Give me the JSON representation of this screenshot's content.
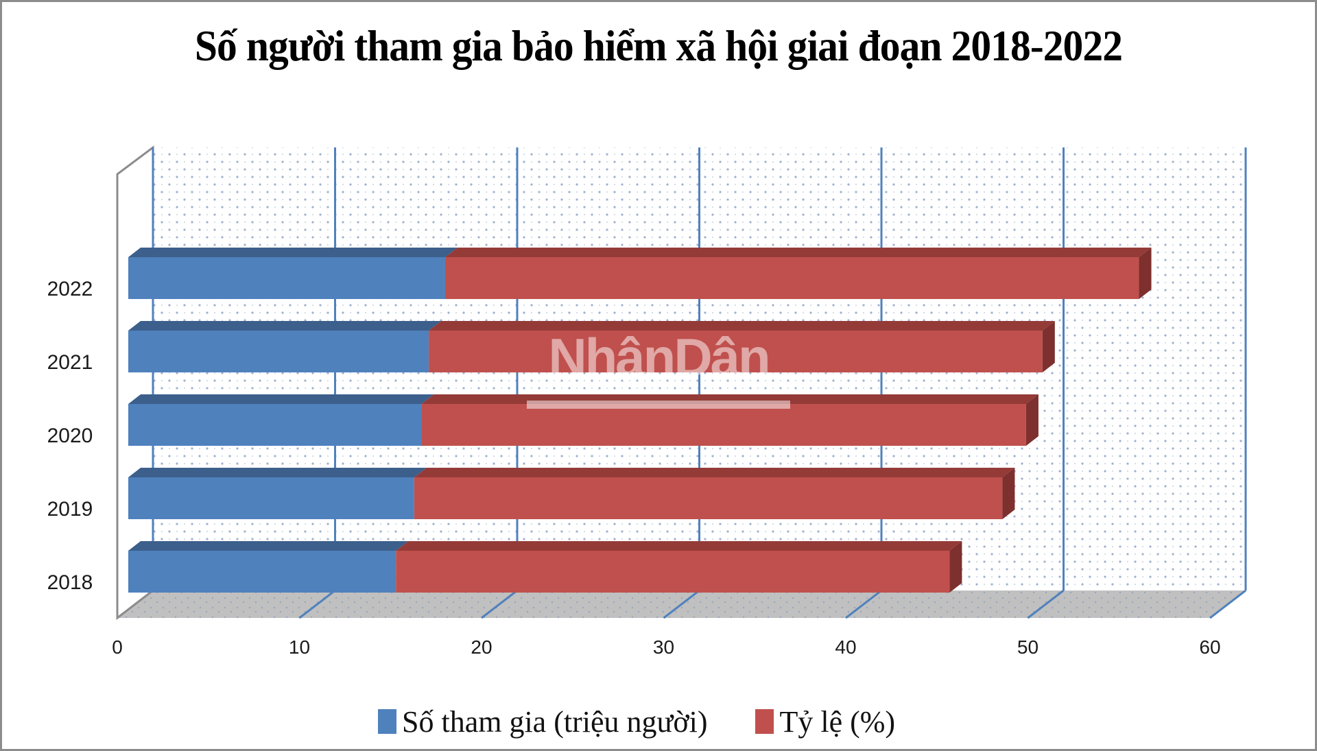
{
  "title": "Số người tham gia bảo hiểm xã hội giai đoạn 2018-2022",
  "watermark": "NhânDân",
  "colors": {
    "series1_front": "#4f81bd",
    "series1_top": "#3c5f8c",
    "series2_front": "#c0504d",
    "series2_top": "#943b38",
    "series2_side": "#7d302e",
    "floor": "#c0c0c0",
    "gridline": "#4f81bd",
    "wall_edge": "#8c8c8c"
  },
  "axis": {
    "y_labels": [
      "2022",
      "2021",
      "2020",
      "2019",
      "2018"
    ],
    "x_ticks": [
      "0",
      "10",
      "20",
      "30",
      "40",
      "50",
      "60"
    ]
  },
  "legend": [
    {
      "label": "Số tham gia (triệu người)",
      "color": "#4f81bd"
    },
    {
      "label": "Tỷ lệ (%)",
      "color": "#c0504d"
    }
  ],
  "chart_data": {
    "type": "bar",
    "orientation": "horizontal",
    "stacked": true,
    "style": "3d",
    "title": "Số người tham gia bảo hiểm xã hội giai đoạn 2018-2022",
    "categories": [
      "2018",
      "2019",
      "2020",
      "2021",
      "2022"
    ],
    "series": [
      {
        "name": "Số tham gia (triệu người)",
        "values": [
          14.7,
          15.7,
          16.1,
          16.5,
          17.4
        ]
      },
      {
        "name": "Tỷ lệ (%)",
        "values": [
          30.4,
          32.3,
          33.2,
          33.7,
          38.1
        ]
      }
    ],
    "xlabel": "",
    "ylabel": "",
    "xlim": [
      0,
      60
    ],
    "x_ticks": [
      0,
      10,
      20,
      30,
      40,
      50,
      60
    ],
    "grid": true,
    "legend_position": "bottom"
  }
}
